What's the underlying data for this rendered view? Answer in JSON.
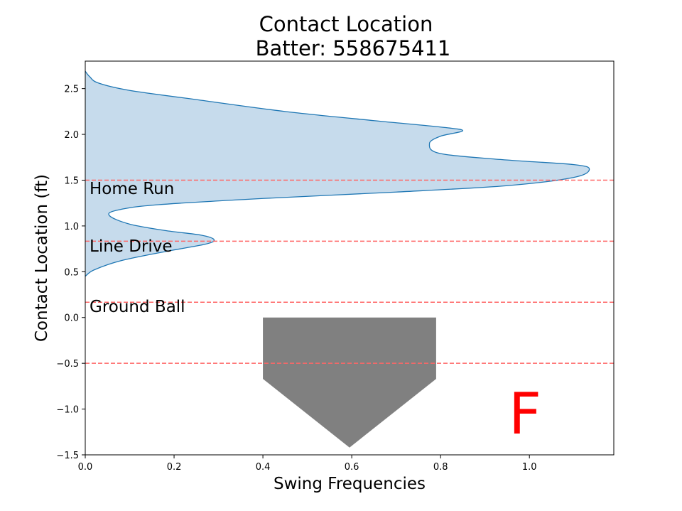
{
  "chart_data": {
    "type": "area",
    "title": "Contact Location",
    "subtitle": "Batter: 558675411",
    "xlabel": "Swing Frequencies",
    "ylabel": "Contact Location (ft)",
    "xlim": [
      0.0,
      1.19
    ],
    "ylim": [
      -1.5,
      2.8
    ],
    "xticks": [
      "0.0",
      "0.2",
      "0.4",
      "0.6",
      "0.8",
      "1.0"
    ],
    "yticks": [
      "−1.5",
      "−1.0",
      "−0.5",
      "0.0",
      "0.5",
      "1.0",
      "1.5",
      "2.0",
      "2.5"
    ],
    "grid": false,
    "series": [
      {
        "color": "#1f77b4",
        "fill": "#c6dbec",
        "points": [
          [
            0.0,
            0.45
          ],
          [
            0.02,
            0.52
          ],
          [
            0.08,
            0.62
          ],
          [
            0.18,
            0.72
          ],
          [
            0.27,
            0.8
          ],
          [
            0.29,
            0.85
          ],
          [
            0.26,
            0.9
          ],
          [
            0.18,
            0.95
          ],
          [
            0.1,
            1.02
          ],
          [
            0.055,
            1.11
          ],
          [
            0.07,
            1.17
          ],
          [
            0.16,
            1.23
          ],
          [
            0.4,
            1.3
          ],
          [
            0.7,
            1.37
          ],
          [
            0.95,
            1.44
          ],
          [
            1.1,
            1.53
          ],
          [
            1.135,
            1.62
          ],
          [
            1.1,
            1.67
          ],
          [
            0.95,
            1.72
          ],
          [
            0.8,
            1.79
          ],
          [
            0.775,
            1.9
          ],
          [
            0.8,
            1.98
          ],
          [
            0.85,
            2.04
          ],
          [
            0.8,
            2.08
          ],
          [
            0.65,
            2.15
          ],
          [
            0.45,
            2.25
          ],
          [
            0.25,
            2.38
          ],
          [
            0.1,
            2.48
          ],
          [
            0.03,
            2.56
          ],
          [
            0.01,
            2.63
          ],
          [
            0.0,
            2.69
          ]
        ]
      }
    ],
    "reference_lines": {
      "y": [
        1.5,
        0.833,
        0.167,
        -0.5
      ],
      "color": "#ff6666",
      "style": "dashed"
    },
    "zone_labels": [
      {
        "text": "Home Run",
        "y": 1.35
      },
      {
        "text": "Line Drive",
        "y": 0.72
      },
      {
        "text": "Ground Ball",
        "y": 0.06
      }
    ],
    "home_plate": {
      "color": "#808080",
      "points": [
        [
          0.4,
          0.0
        ],
        [
          0.79,
          0.0
        ],
        [
          0.79,
          -0.67
        ],
        [
          0.595,
          -1.42
        ],
        [
          0.4,
          -0.67
        ]
      ]
    },
    "grade": {
      "text": "F",
      "color": "#ff0000",
      "x": 0.99,
      "y": -1.05
    }
  }
}
